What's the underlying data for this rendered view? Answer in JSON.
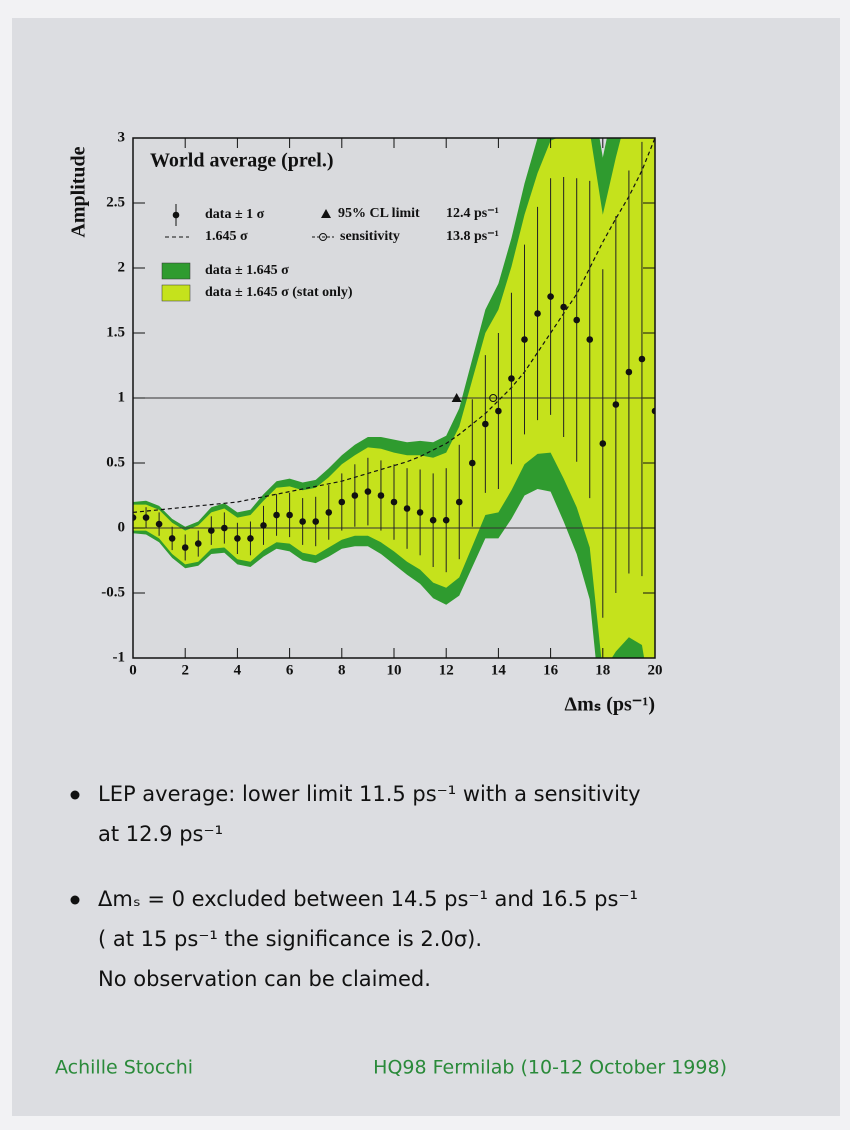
{
  "chart_data": {
    "type": "scatter",
    "title": "World average (prel.)",
    "ylabel": "Amplitude",
    "xlabel": "Δmₛ (ps⁻¹)",
    "xlim": [
      0,
      20
    ],
    "ylim": [
      -1,
      3
    ],
    "xticks": [
      0,
      2,
      4,
      6,
      8,
      10,
      12,
      14,
      16,
      18,
      20
    ],
    "yticks": [
      -1,
      -0.5,
      0,
      0.5,
      1,
      1.5,
      2,
      2.5,
      3
    ],
    "hlines": [
      0,
      1
    ],
    "x": [
      0,
      0.5,
      1,
      1.5,
      2,
      2.5,
      3,
      3.5,
      4,
      4.5,
      5,
      5.5,
      6,
      6.5,
      7,
      7.5,
      8,
      8.5,
      9,
      9.5,
      10,
      10.5,
      11,
      11.5,
      12,
      12.5,
      13,
      13.5,
      14,
      14.5,
      15,
      15.5,
      16,
      16.5,
      17,
      17.5,
      18,
      18.5,
      19,
      19.5,
      20
    ],
    "values": [
      0.08,
      0.08,
      0.03,
      -0.08,
      -0.15,
      -0.12,
      -0.02,
      0.0,
      -0.08,
      -0.08,
      0.02,
      0.1,
      0.1,
      0.05,
      0.05,
      0.12,
      0.2,
      0.25,
      0.28,
      0.25,
      0.2,
      0.15,
      0.12,
      0.06,
      0.06,
      0.2,
      0.5,
      0.8,
      0.9,
      1.15,
      1.45,
      1.65,
      1.78,
      1.7,
      1.6,
      1.45,
      0.65,
      0.95,
      1.2,
      1.3,
      0.9
    ],
    "errors": [
      0.07,
      0.08,
      0.09,
      0.09,
      0.1,
      0.1,
      0.11,
      0.12,
      0.12,
      0.13,
      0.15,
      0.16,
      0.17,
      0.18,
      0.19,
      0.21,
      0.22,
      0.24,
      0.26,
      0.27,
      0.29,
      0.31,
      0.33,
      0.36,
      0.4,
      0.44,
      0.49,
      0.53,
      0.6,
      0.66,
      0.73,
      0.82,
      0.91,
      1.0,
      1.09,
      1.22,
      1.34,
      1.45,
      1.55,
      1.67,
      1.82
    ],
    "sigma_1645": [
      0.12,
      0.13,
      0.14,
      0.15,
      0.16,
      0.17,
      0.18,
      0.19,
      0.2,
      0.22,
      0.24,
      0.26,
      0.28,
      0.3,
      0.32,
      0.34,
      0.36,
      0.39,
      0.42,
      0.45,
      0.48,
      0.51,
      0.55,
      0.6,
      0.65,
      0.72,
      0.8,
      0.88,
      0.98,
      1.08,
      1.2,
      1.35,
      1.5,
      1.65,
      1.8,
      2.0,
      2.2,
      2.38,
      2.55,
      2.75,
      3.0
    ],
    "sigma_1645_stat": [
      0.1,
      0.1,
      0.11,
      0.12,
      0.13,
      0.14,
      0.14,
      0.15,
      0.16,
      0.18,
      0.19,
      0.21,
      0.22,
      0.24,
      0.26,
      0.27,
      0.29,
      0.31,
      0.34,
      0.36,
      0.38,
      0.41,
      0.44,
      0.48,
      0.52,
      0.58,
      0.64,
      0.7,
      0.78,
      0.86,
      0.96,
      1.08,
      1.2,
      1.32,
      1.44,
      1.6,
      1.76,
      1.9,
      2.04,
      2.2,
      2.4
    ],
    "band_color": "#2f9b2f",
    "band_stat_color": "#c5e21c",
    "point_color": "#111111",
    "legend": {
      "data": "data ± 1 σ",
      "line": "1.645 σ",
      "limit": "95% CL limit",
      "sensitivity": "sensitivity",
      "band": "data ± 1.645 σ",
      "band_stat": "data ± 1.645 σ (stat only)"
    },
    "limit": {
      "value": 12.4,
      "value_label": "12.4 ps⁻¹"
    },
    "sensitivity": {
      "value": 13.8,
      "value_label": "13.8 ps⁻¹"
    }
  },
  "bullets": [
    [
      "LEP average: lower limit 11.5 ps⁻¹ with a sensitivity",
      "at 12.9 ps⁻¹"
    ],
    [
      "Δmₛ = 0 excluded between 14.5 ps⁻¹ and 16.5 ps⁻¹",
      "( at 15 ps⁻¹ the significance is 2.0σ).",
      "No observation can be claimed."
    ]
  ],
  "footer": {
    "author": "Achille Stocchi",
    "event": "HQ98 Fermilab (10-12 October 1998)"
  }
}
